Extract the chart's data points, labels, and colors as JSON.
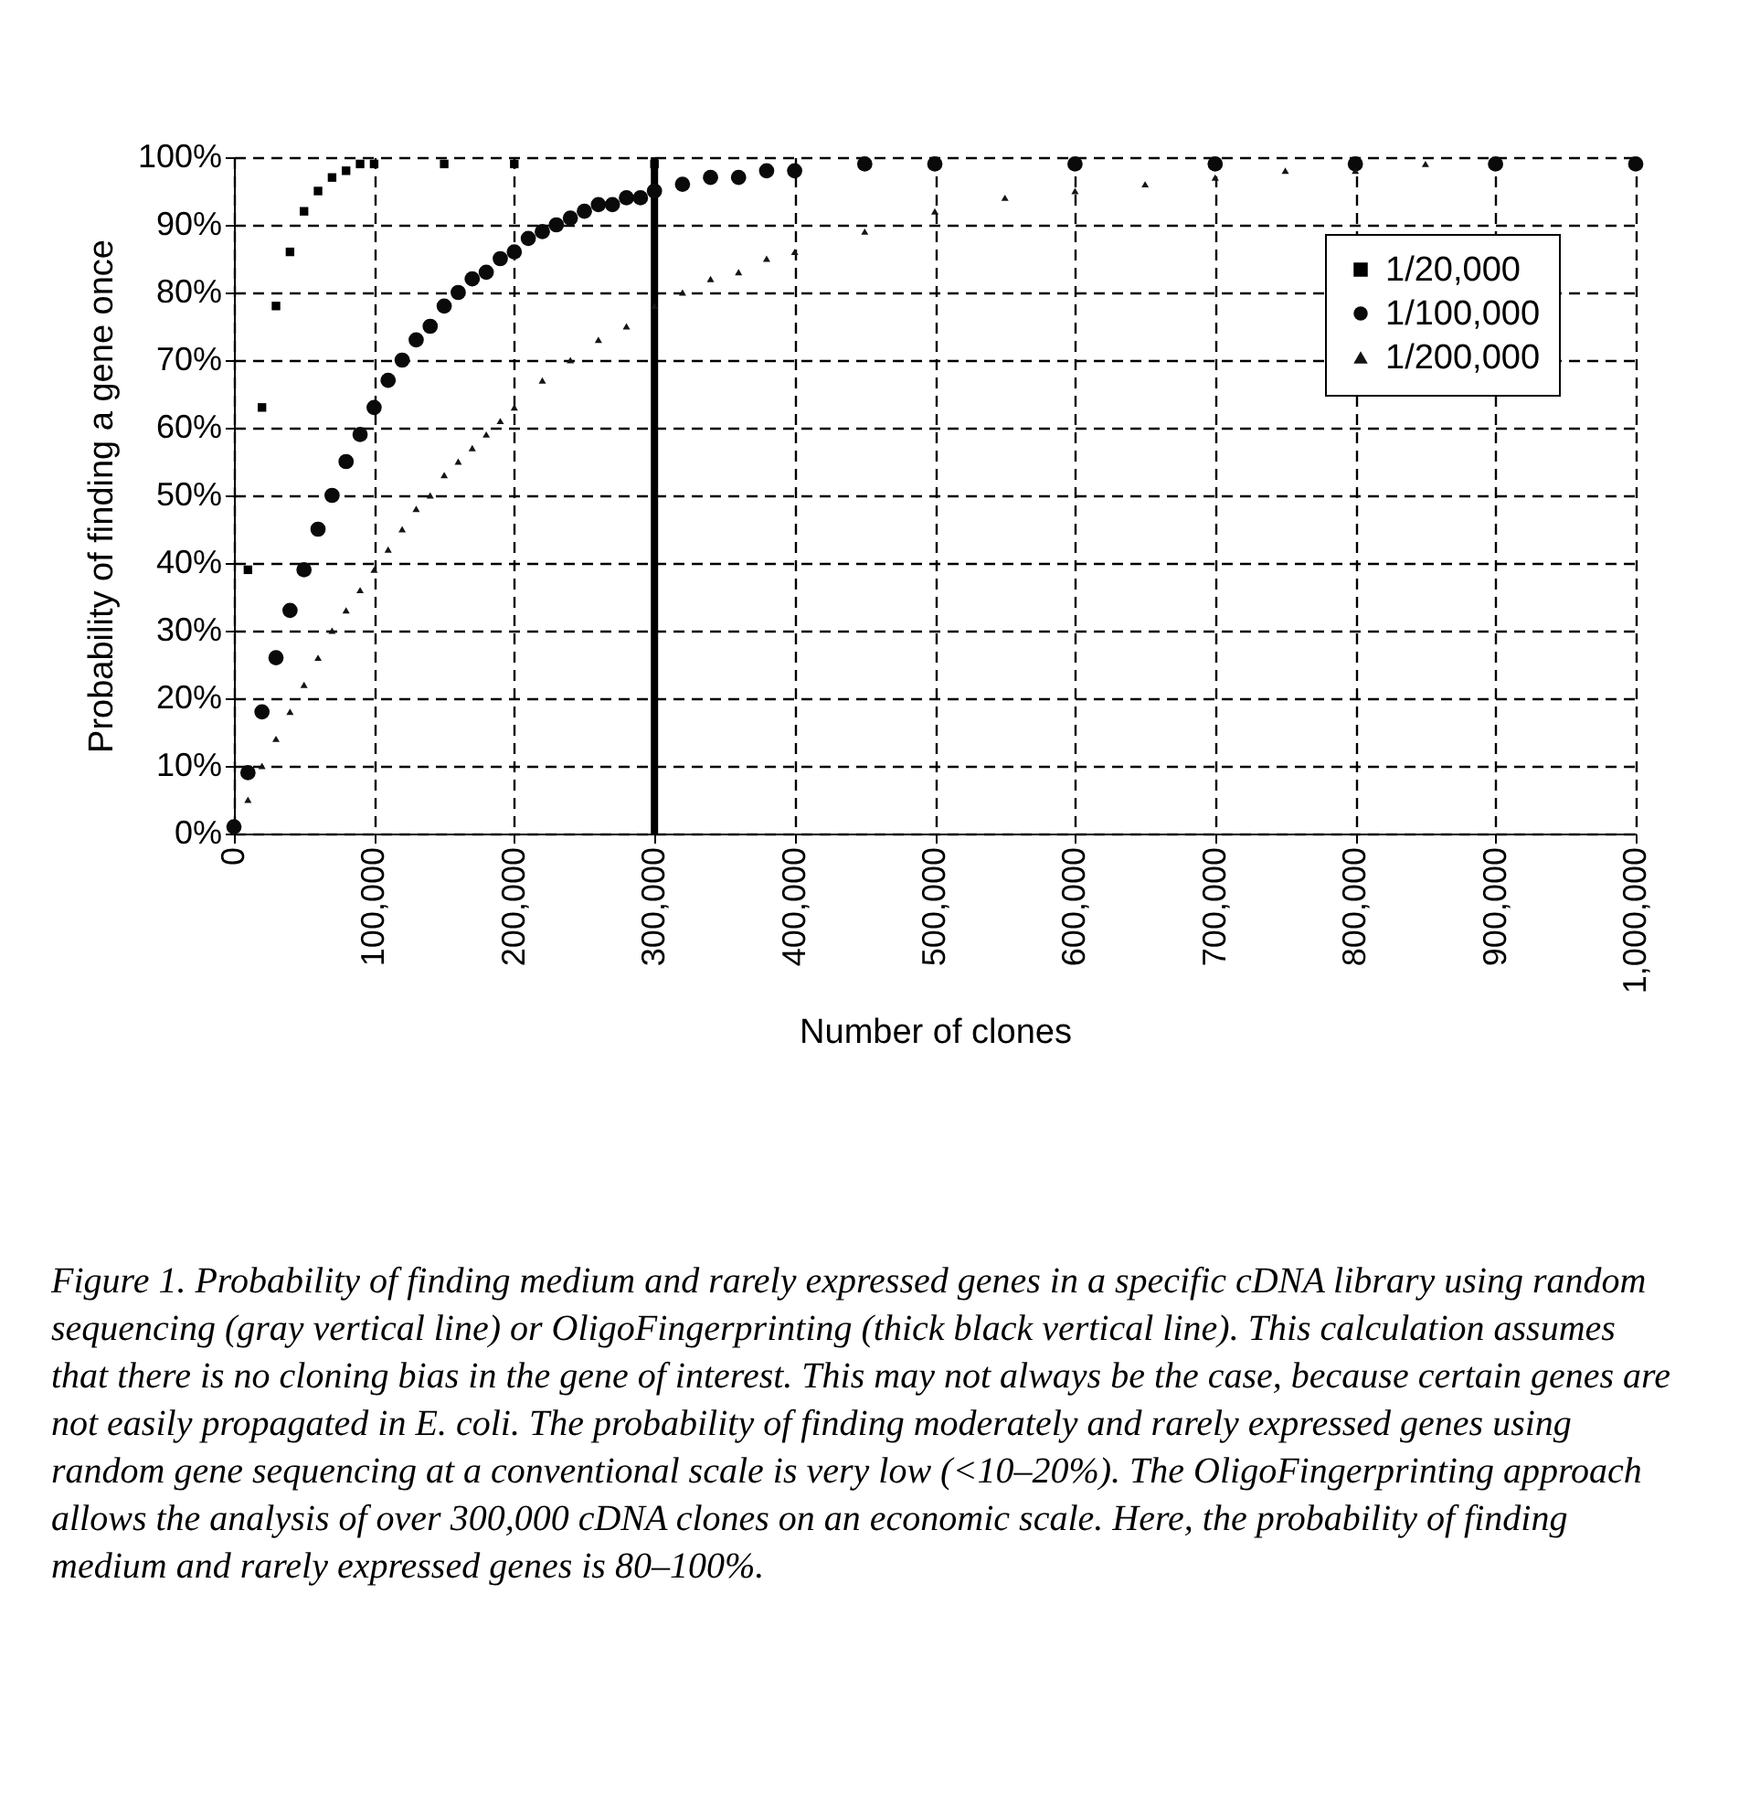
{
  "chart_data": {
    "type": "scatter",
    "xlabel": "Number of clones",
    "ylabel": "Probability of finding a gene once",
    "series": [
      {
        "name": "1/20,000",
        "color": "#000000",
        "marker": "square",
        "x": [
          10000,
          20000,
          30000,
          40000,
          50000,
          60000,
          70000,
          80000,
          90000,
          100000,
          150000,
          200000,
          300000
        ],
        "values": [
          39,
          63,
          78,
          86,
          92,
          95,
          97,
          98,
          99,
          99,
          99,
          99,
          99
        ]
      },
      {
        "name": "1/100,000",
        "color": "#0a0a0a",
        "marker": "circle",
        "x": [
          0,
          10000,
          20000,
          30000,
          40000,
          50000,
          60000,
          70000,
          80000,
          90000,
          100000,
          110000,
          120000,
          130000,
          140000,
          150000,
          160000,
          170000,
          180000,
          190000,
          200000,
          210000,
          220000,
          230000,
          240000,
          250000,
          260000,
          270000,
          280000,
          290000,
          300000,
          320000,
          340000,
          360000,
          380000,
          400000,
          450000,
          500000,
          600000,
          700000,
          800000,
          900000,
          1000000
        ],
        "values": [
          1,
          9,
          18,
          26,
          33,
          39,
          45,
          50,
          55,
          59,
          63,
          67,
          70,
          73,
          75,
          78,
          80,
          82,
          83,
          85,
          86,
          88,
          89,
          90,
          91,
          92,
          93,
          93,
          94,
          94,
          95,
          96,
          97,
          97,
          98,
          98,
          99,
          99,
          99,
          99,
          99,
          99,
          99
        ]
      },
      {
        "name": "1/200,000",
        "color": "#141414",
        "marker": "triangle",
        "x": [
          10000,
          20000,
          30000,
          40000,
          50000,
          60000,
          70000,
          80000,
          90000,
          100000,
          110000,
          120000,
          130000,
          140000,
          150000,
          160000,
          170000,
          180000,
          190000,
          200000,
          220000,
          240000,
          260000,
          280000,
          300000,
          320000,
          340000,
          360000,
          380000,
          400000,
          450000,
          500000,
          550000,
          600000,
          650000,
          700000,
          750000,
          800000,
          850000
        ],
        "values": [
          5,
          10,
          14,
          18,
          22,
          26,
          30,
          33,
          36,
          39,
          42,
          45,
          48,
          50,
          53,
          55,
          57,
          59,
          61,
          63,
          67,
          70,
          73,
          75,
          78,
          80,
          82,
          83,
          85,
          86,
          89,
          92,
          94,
          95,
          96,
          97,
          98,
          98,
          99
        ]
      }
    ],
    "xlim": [
      0,
      1000000
    ],
    "xticks": [
      0,
      {
        "value": 100000,
        "label": "100,000"
      },
      {
        "value": 200000,
        "label": "200,000"
      },
      {
        "value": 300000,
        "label": "300,000"
      },
      {
        "value": 400000,
        "label": "400,000"
      },
      {
        "value": 500000,
        "label": "500,000"
      },
      {
        "value": 600000,
        "label": "600,000"
      },
      {
        "value": 700000,
        "label": "700,000"
      },
      {
        "value": 800000,
        "label": "800,000"
      },
      {
        "value": 900000,
        "label": "900,000"
      },
      {
        "value": 1000000,
        "label": "1,000,000"
      }
    ],
    "ylim": [
      0,
      100
    ],
    "yticks": [
      {
        "value": 0,
        "label": "0%"
      },
      {
        "value": 10,
        "label": "10%"
      },
      {
        "value": 20,
        "label": "20%"
      },
      {
        "value": 30,
        "label": "30%"
      },
      {
        "value": 40,
        "label": "40%"
      },
      {
        "value": 50,
        "label": "50%"
      },
      {
        "value": 60,
        "label": "60%"
      },
      {
        "value": 70,
        "label": "70%"
      },
      {
        "value": 80,
        "label": "80%"
      },
      {
        "value": 90,
        "label": "90%"
      },
      {
        "value": 100,
        "label": "100%"
      }
    ],
    "ref_lines": [
      {
        "axis": "x",
        "value": 300000,
        "color": "#000000"
      }
    ],
    "grid": true,
    "legend": "top right",
    "annotations": [
      "Figure 1. Probability of finding medium and rarely expressed genes in a specific cDNA library using random sequencing (gray vertical line) or OligoFingerprinting (thick black vertical line). This calculation assumes that there is no cloning bias in the gene of interest. This may not always be the case, because certain genes are not easily propagated in E. coli. The probability of finding moderately and rarely expressed genes using random gene sequencing at a conventional scale is very low (<10–20%). The OligoFingerprinting approach allows the analysis of over 300,000 cDNA clones on an economic scale. Here, the probability of finding medium and rarely expressed genes is 80–100%."
    ]
  }
}
